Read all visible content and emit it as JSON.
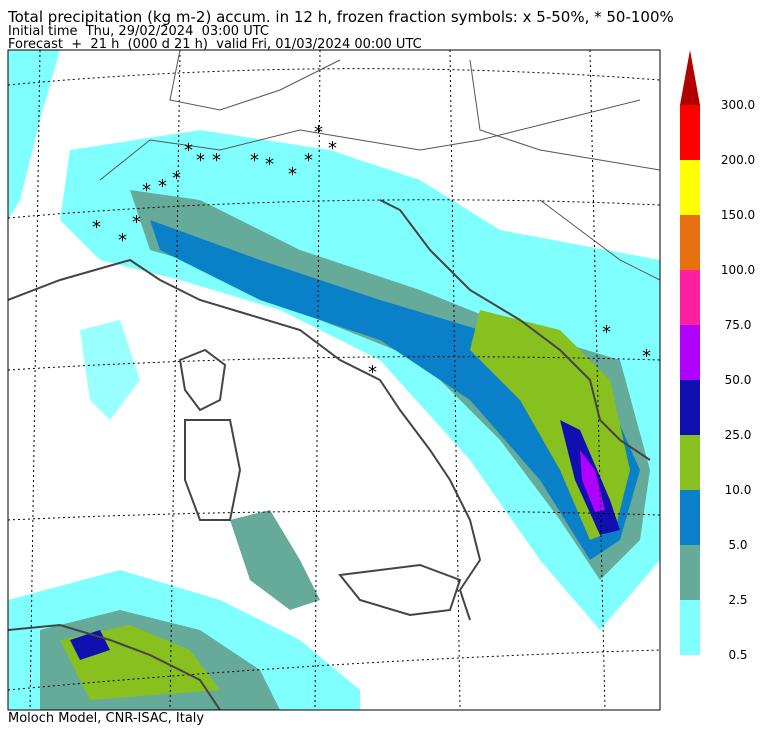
{
  "header": {
    "title": "Total precipitation (kg m-2) accum. in 12 h, frozen fraction symbols: x 5-50%, * 50-100%",
    "initial_time": "Initial time  Thu, 29/02/2024  03:00 UTC",
    "forecast": "Forecast  +  21 h  (000 d 21 h)  valid Fri, 01/03/2024 00:00 UTC"
  },
  "colorbar": {
    "labels": [
      "0.5",
      "2.5",
      "5.0",
      "10.0",
      "25.0",
      "50.0",
      "75.0",
      "100.0",
      "150.0",
      "200.0",
      "300.0"
    ],
    "colors": [
      "#80ffff",
      "#66aa99",
      "#0a80c8",
      "#88c020",
      "#1010b0",
      "#b000ff",
      "#ff20a0",
      "#e87010",
      "#ffff00",
      "#ff0000",
      "#b00000"
    ]
  },
  "footer": "Moloch Model, CNR-ISAC, Italy"
}
